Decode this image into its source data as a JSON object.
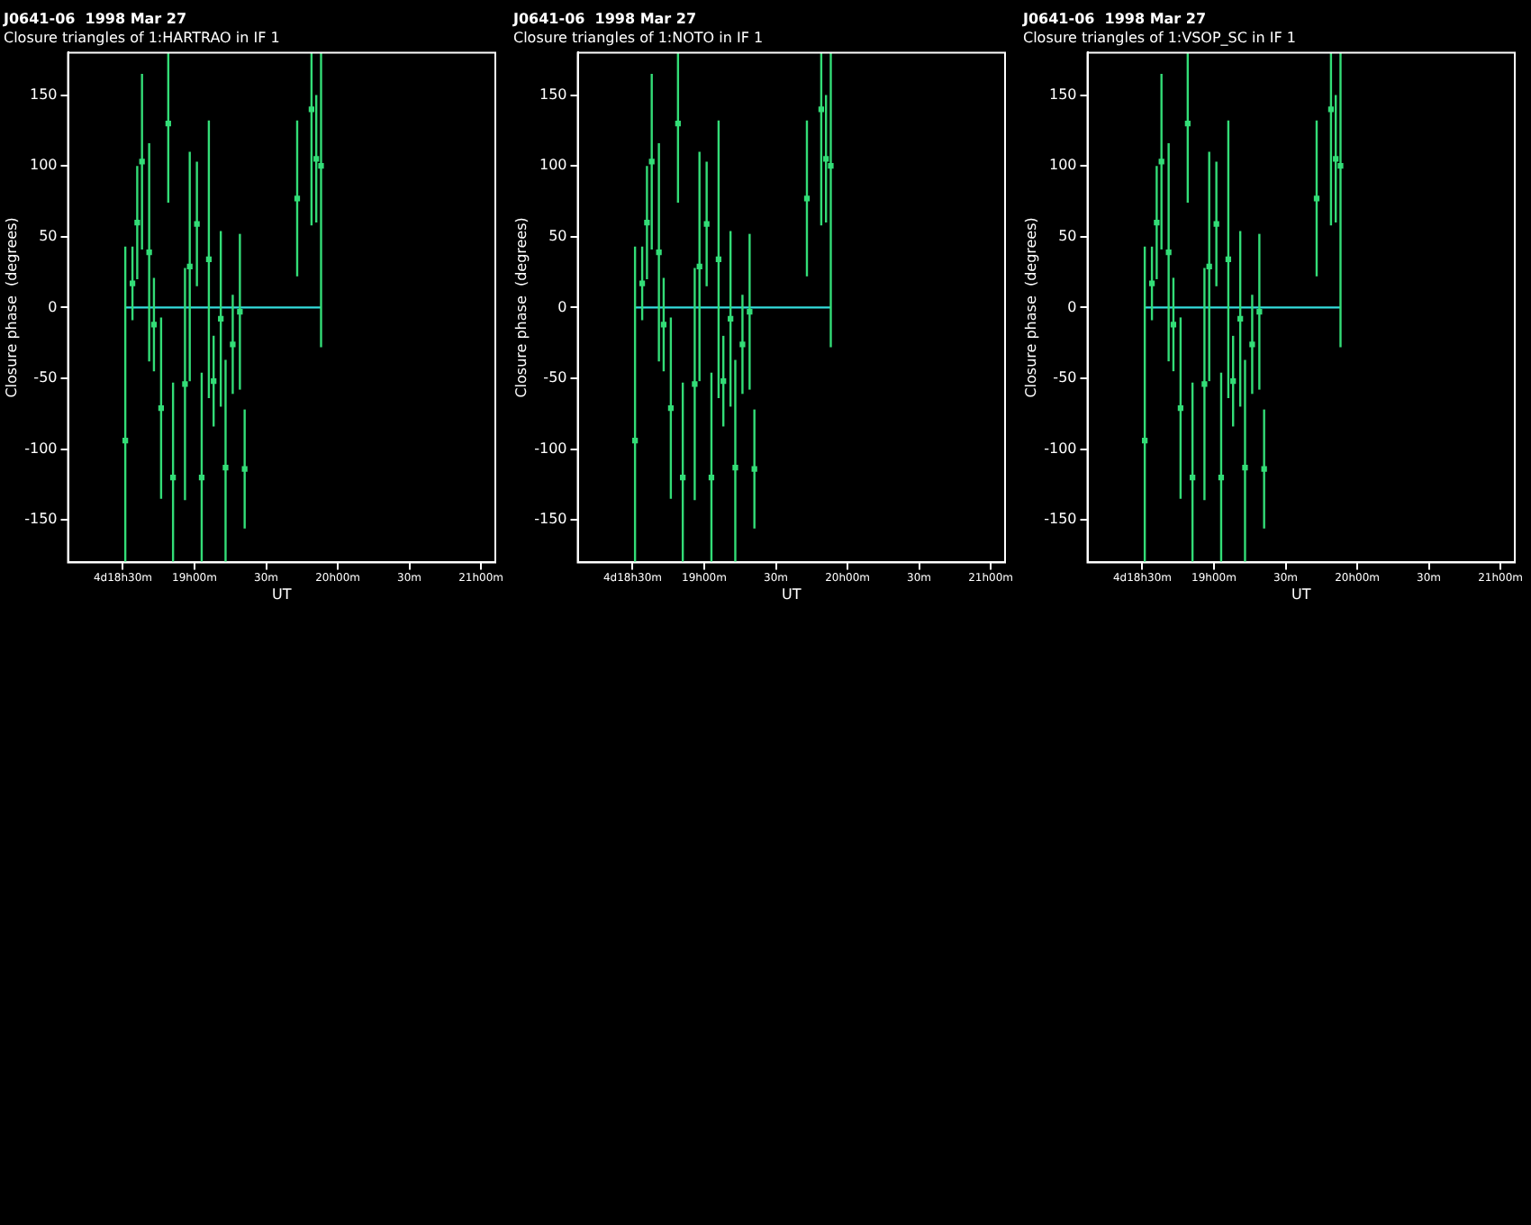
{
  "chart_data": [
    {
      "type": "scatter",
      "title": "J0641-06  1998 Mar 27",
      "subtitle": "Closure triangles of 1:HARTRAO in IF 1",
      "xlabel": "UT",
      "ylabel": "Closure phase  (degrees)",
      "xlim": [
        "1998-03-27T18:07",
        "1998-03-27T21:06"
      ],
      "xticks": [
        {
          "value": "1998-03-27T18:30",
          "label": "4d18h30m"
        },
        {
          "value": "1998-03-27T19:00",
          "label": "19h00m"
        },
        {
          "value": "1998-03-27T19:30",
          "label": "30m"
        },
        {
          "value": "1998-03-27T20:00",
          "label": "20h00m"
        },
        {
          "value": "1998-03-27T20:30",
          "label": "30m"
        },
        {
          "value": "1998-03-27T21:00",
          "label": "21h00m"
        }
      ],
      "ylim": [
        -180,
        180
      ],
      "yticks": [
        -150,
        -100,
        -50,
        0,
        50,
        100,
        150
      ],
      "series": [
        {
          "type": "scatter",
          "marker": "square",
          "color": "#33dd77",
          "x": [
            "1998-03-27T18:31",
            "1998-03-27T18:34",
            "1998-03-27T18:36",
            "1998-03-27T18:38",
            "1998-03-27T18:41",
            "1998-03-27T18:43",
            "1998-03-27T18:46",
            "1998-03-27T18:49",
            "1998-03-27T18:51",
            "1998-03-27T18:56",
            "1998-03-27T18:58",
            "1998-03-27T19:01",
            "1998-03-27T19:03",
            "1998-03-27T19:06",
            "1998-03-27T19:08",
            "1998-03-27T19:11",
            "1998-03-27T19:13",
            "1998-03-27T19:16",
            "1998-03-27T19:19",
            "1998-03-27T19:21",
            "1998-03-27T19:43",
            "1998-03-27T19:49",
            "1998-03-27T19:51",
            "1998-03-27T19:53"
          ],
          "values": [
            -94,
            17,
            60,
            103,
            39,
            -12,
            -71,
            130,
            -120,
            -54,
            29,
            59,
            -120,
            34,
            -52,
            -8,
            -113,
            -26,
            -3,
            -114,
            77,
            140,
            105,
            100
          ],
          "errors": [
            137,
            26,
            40,
            62,
            77,
            33,
            64,
            56,
            67,
            82,
            81,
            44,
            74,
            98,
            32,
            62,
            76,
            35,
            55,
            42,
            55,
            82,
            45,
            128
          ]
        },
        {
          "type": "line",
          "marker": "none",
          "color": "#33dddd",
          "x": [
            "1998-03-27T18:31",
            "1998-03-27T19:53"
          ],
          "values": [
            0,
            0
          ]
        }
      ]
    },
    {
      "type": "scatter",
      "title": "J0641-06  1998 Mar 27",
      "subtitle": "Closure triangles of 1:NOTO in IF 1",
      "xlabel": "UT",
      "ylabel": "Closure phase  (degrees)",
      "xlim": [
        "1998-03-27T18:07",
        "1998-03-27T21:06"
      ],
      "xticks": [
        {
          "value": "1998-03-27T18:30",
          "label": "4d18h30m"
        },
        {
          "value": "1998-03-27T19:00",
          "label": "19h00m"
        },
        {
          "value": "1998-03-27T19:30",
          "label": "30m"
        },
        {
          "value": "1998-03-27T20:00",
          "label": "20h00m"
        },
        {
          "value": "1998-03-27T20:30",
          "label": "30m"
        },
        {
          "value": "1998-03-27T21:00",
          "label": "21h00m"
        }
      ],
      "ylim": [
        -180,
        180
      ],
      "yticks": [
        -150,
        -100,
        -50,
        0,
        50,
        100,
        150
      ],
      "series": [
        {
          "type": "scatter",
          "marker": "square",
          "color": "#33dd77",
          "x": [
            "1998-03-27T18:31",
            "1998-03-27T18:34",
            "1998-03-27T18:36",
            "1998-03-27T18:38",
            "1998-03-27T18:41",
            "1998-03-27T18:43",
            "1998-03-27T18:46",
            "1998-03-27T18:49",
            "1998-03-27T18:51",
            "1998-03-27T18:56",
            "1998-03-27T18:58",
            "1998-03-27T19:01",
            "1998-03-27T19:03",
            "1998-03-27T19:06",
            "1998-03-27T19:08",
            "1998-03-27T19:11",
            "1998-03-27T19:13",
            "1998-03-27T19:16",
            "1998-03-27T19:19",
            "1998-03-27T19:21",
            "1998-03-27T19:43",
            "1998-03-27T19:49",
            "1998-03-27T19:51",
            "1998-03-27T19:53"
          ],
          "values": [
            -94,
            17,
            60,
            103,
            39,
            -12,
            -71,
            130,
            -120,
            -54,
            29,
            59,
            -120,
            34,
            -52,
            -8,
            -113,
            -26,
            -3,
            -114,
            77,
            140,
            105,
            100
          ],
          "errors": [
            137,
            26,
            40,
            62,
            77,
            33,
            64,
            56,
            67,
            82,
            81,
            44,
            74,
            98,
            32,
            62,
            76,
            35,
            55,
            42,
            55,
            82,
            45,
            128
          ]
        },
        {
          "type": "line",
          "marker": "none",
          "color": "#33dddd",
          "x": [
            "1998-03-27T18:31",
            "1998-03-27T19:53"
          ],
          "values": [
            0,
            0
          ]
        }
      ]
    },
    {
      "type": "scatter",
      "title": "J0641-06  1998 Mar 27",
      "subtitle": "Closure triangles of 1:VSOP_SC in IF 1",
      "xlabel": "UT",
      "ylabel": "Closure phase  (degrees)",
      "xlim": [
        "1998-03-27T18:07",
        "1998-03-27T21:06"
      ],
      "xticks": [
        {
          "value": "1998-03-27T18:30",
          "label": "4d18h30m"
        },
        {
          "value": "1998-03-27T19:00",
          "label": "19h00m"
        },
        {
          "value": "1998-03-27T19:30",
          "label": "30m"
        },
        {
          "value": "1998-03-27T20:00",
          "label": "20h00m"
        },
        {
          "value": "1998-03-27T20:30",
          "label": "30m"
        },
        {
          "value": "1998-03-27T21:00",
          "label": "21h00m"
        }
      ],
      "ylim": [
        -180,
        180
      ],
      "yticks": [
        -150,
        -100,
        -50,
        0,
        50,
        100,
        150
      ],
      "series": [
        {
          "type": "scatter",
          "marker": "square",
          "color": "#33dd77",
          "x": [
            "1998-03-27T18:31",
            "1998-03-27T18:34",
            "1998-03-27T18:36",
            "1998-03-27T18:38",
            "1998-03-27T18:41",
            "1998-03-27T18:43",
            "1998-03-27T18:46",
            "1998-03-27T18:49",
            "1998-03-27T18:51",
            "1998-03-27T18:56",
            "1998-03-27T18:58",
            "1998-03-27T19:01",
            "1998-03-27T19:03",
            "1998-03-27T19:06",
            "1998-03-27T19:08",
            "1998-03-27T19:11",
            "1998-03-27T19:13",
            "1998-03-27T19:16",
            "1998-03-27T19:19",
            "1998-03-27T19:21",
            "1998-03-27T19:43",
            "1998-03-27T19:49",
            "1998-03-27T19:51",
            "1998-03-27T19:53"
          ],
          "values": [
            -94,
            17,
            60,
            103,
            39,
            -12,
            -71,
            130,
            -120,
            -54,
            29,
            59,
            -120,
            34,
            -52,
            -8,
            -113,
            -26,
            -3,
            -114,
            77,
            140,
            105,
            100
          ],
          "errors": [
            137,
            26,
            40,
            62,
            77,
            33,
            64,
            56,
            67,
            82,
            81,
            44,
            74,
            98,
            32,
            62,
            76,
            35,
            55,
            42,
            55,
            82,
            45,
            128
          ]
        },
        {
          "type": "line",
          "marker": "none",
          "color": "#33dddd",
          "x": [
            "1998-03-27T18:31",
            "1998-03-27T19:53"
          ],
          "values": [
            0,
            0
          ]
        }
      ]
    }
  ]
}
